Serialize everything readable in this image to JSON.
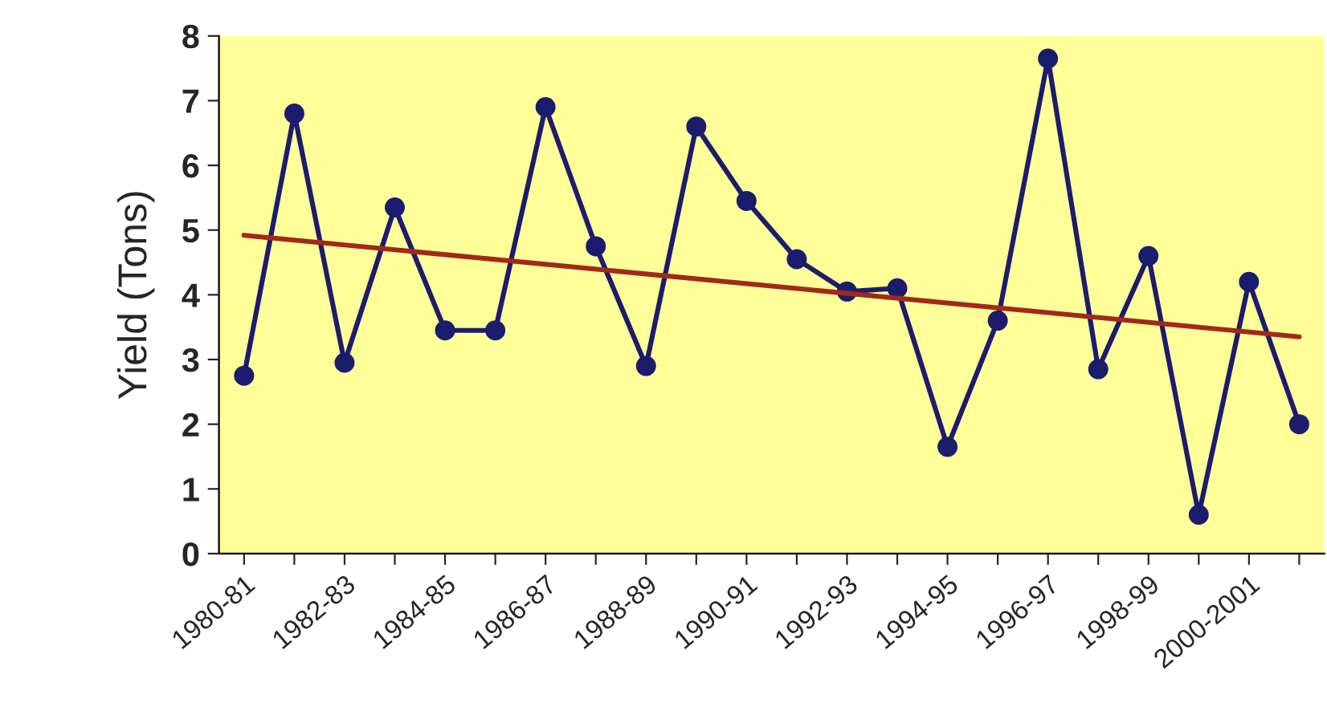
{
  "chart_data": {
    "type": "line",
    "ylabel": "Yield (Tons)",
    "categories": [
      "1980-81",
      null,
      "1982-83",
      null,
      "1984-85",
      null,
      "1986-87",
      null,
      "1988-89",
      null,
      "1990-91",
      null,
      "1992-93",
      null,
      "1994-95",
      null,
      "1996-97",
      null,
      "1998-99",
      null,
      "2000-2001",
      null
    ],
    "series": [
      {
        "color": "#1c1c6e",
        "marker": "circle",
        "values": [
          2.75,
          6.8,
          2.95,
          5.35,
          3.45,
          3.45,
          6.9,
          4.75,
          2.9,
          6.6,
          5.45,
          4.55,
          4.05,
          4.1,
          1.65,
          3.6,
          7.65,
          2.85,
          4.6,
          0.6,
          4.2,
          2.0
        ]
      },
      {
        "color": "#a02a1a",
        "marker": "none",
        "values": [
          4.92,
          null,
          null,
          null,
          null,
          null,
          null,
          null,
          null,
          null,
          null,
          null,
          null,
          null,
          null,
          null,
          null,
          null,
          null,
          null,
          null,
          3.35
        ]
      }
    ],
    "ylim": [
      0,
      8
    ],
    "yticks": [
      0,
      1,
      2,
      3,
      4,
      5,
      6,
      7,
      8
    ],
    "grid": false,
    "legend": false
  }
}
